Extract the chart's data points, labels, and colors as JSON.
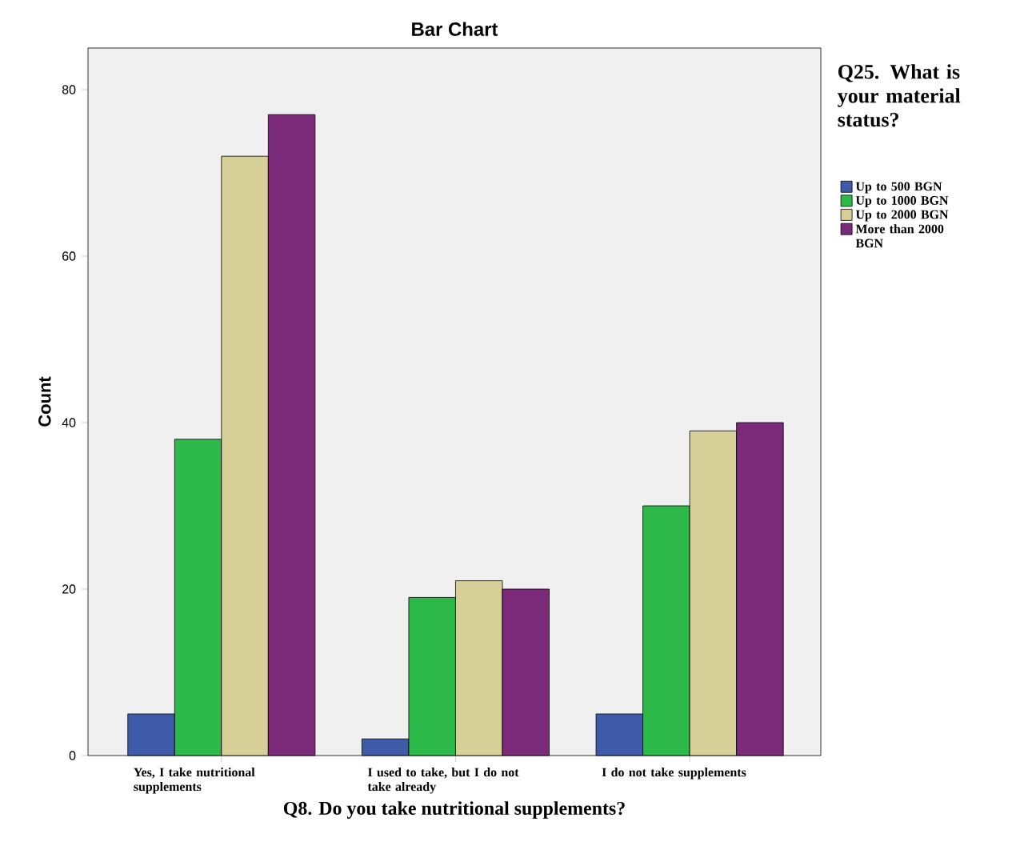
{
  "chart_data": {
    "type": "bar",
    "title": "Bar Chart",
    "xlabel": "Q8. Do you take nutritional supplements?",
    "ylabel": "Count",
    "legend_title": "Q25. What is your material status?",
    "categories": [
      "Yes, I take nutritional supplements",
      "I used to take, but I do not take already",
      "I do not take supplements"
    ],
    "series": [
      {
        "name": "Up to 500 BGN",
        "color": "#3e5aa8",
        "values": [
          5,
          2,
          5
        ]
      },
      {
        "name": "Up to 1000 BGN",
        "color": "#2db84a",
        "values": [
          38,
          19,
          30
        ]
      },
      {
        "name": "Up to 2000 BGN",
        "color": "#d6cf97",
        "values": [
          72,
          21,
          39
        ]
      },
      {
        "name": "More than 2000 BGN",
        "color": "#7b2a7a",
        "values": [
          77,
          20,
          40
        ]
      }
    ],
    "ylim": [
      0,
      85
    ],
    "yticks": [
      0,
      20,
      40,
      60,
      80
    ],
    "grid": false,
    "legend": "right"
  }
}
